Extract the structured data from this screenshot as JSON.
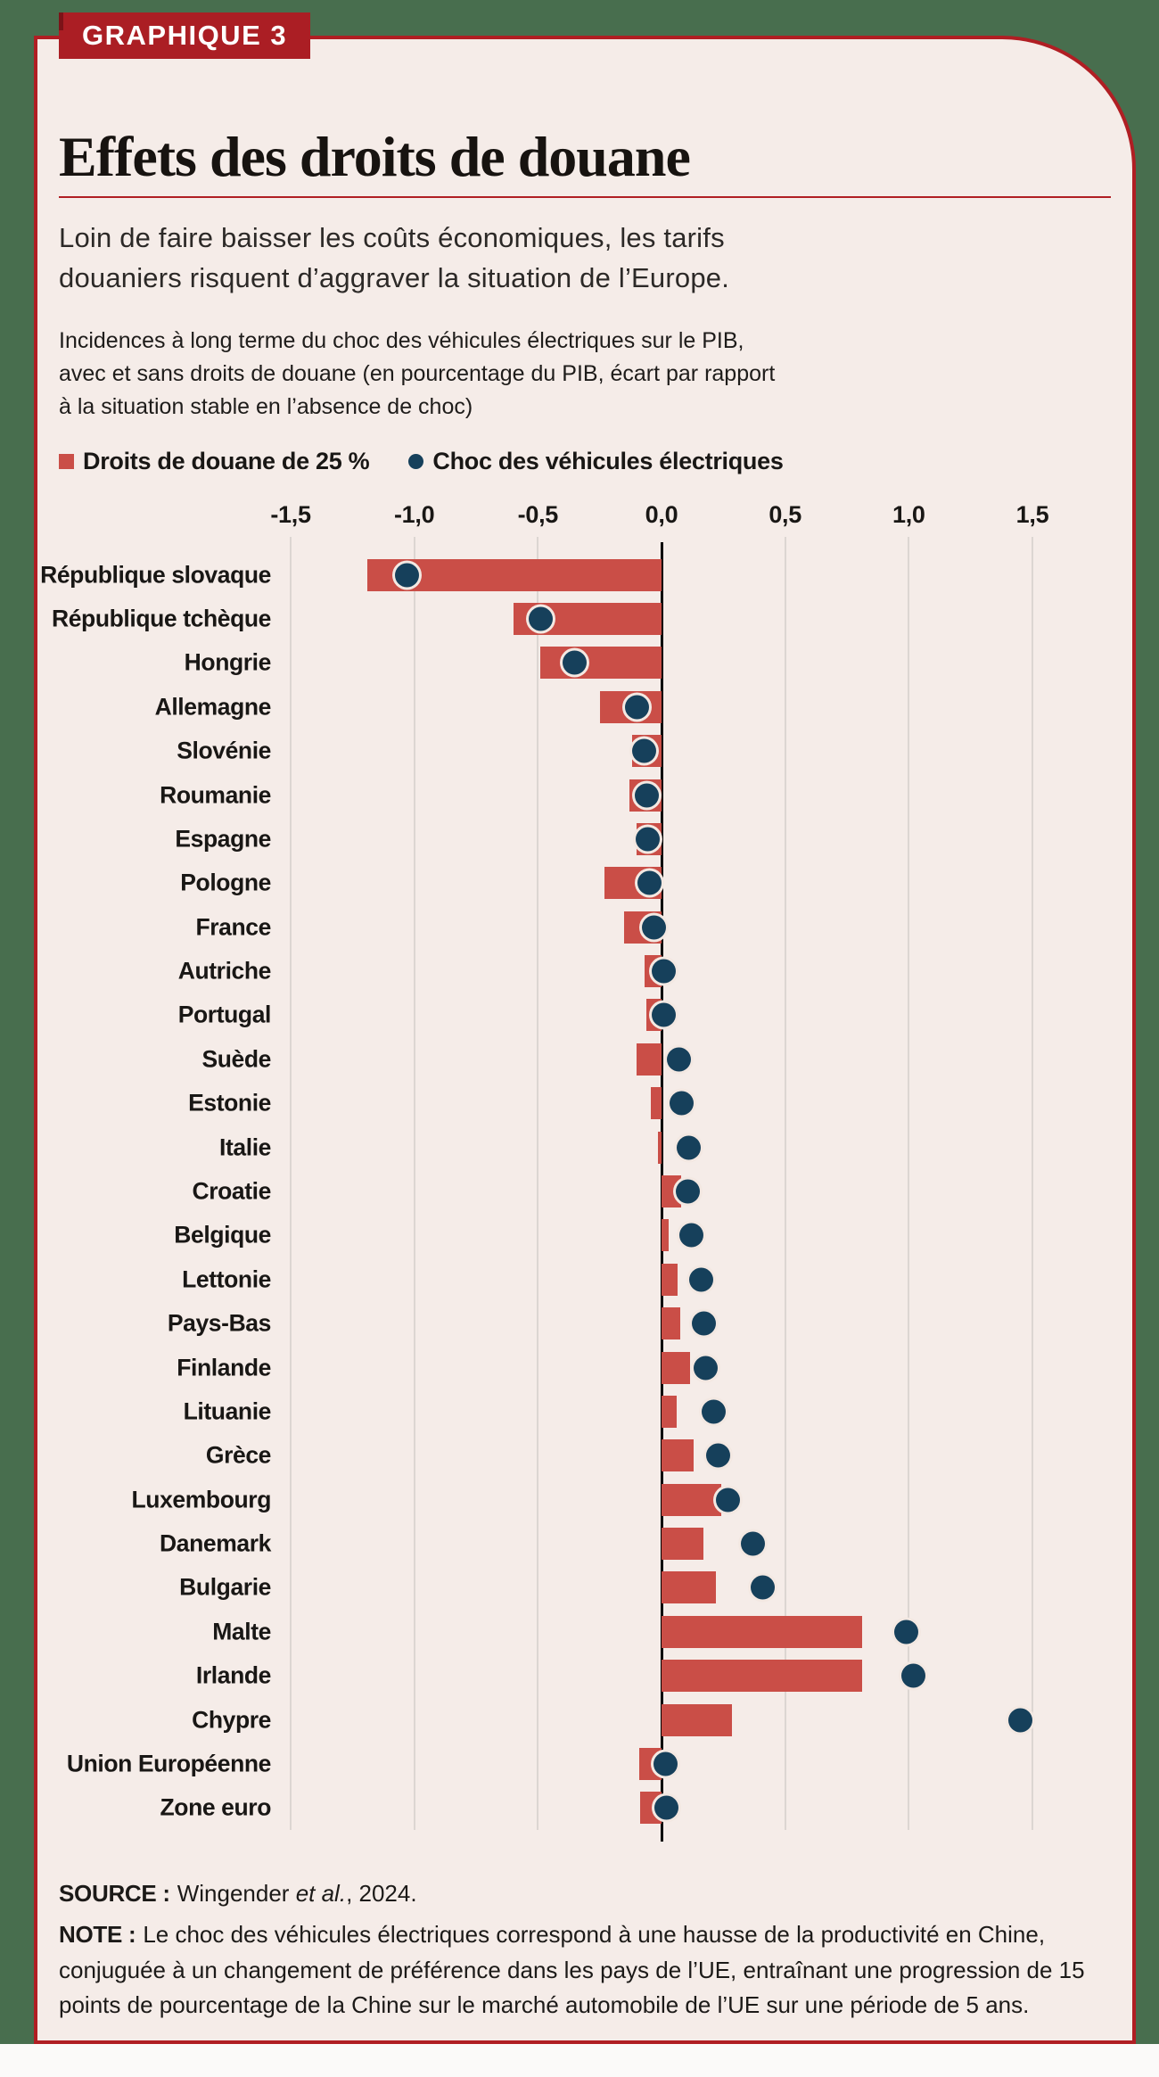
{
  "badge": {
    "label": "GRAPHIQUE 3"
  },
  "header": {
    "title": "Effets des droits de douane",
    "lede_lines": [
      "Loin de faire baisser les coûts économiques, les tarifs",
      "douaniers risquent d’aggraver la situation de l’Europe."
    ],
    "description_lines": [
      "Incidences à long terme du choc des véhicules électriques sur le PIB,",
      "avec et sans droits de douane (en pourcentage du PIB, écart par rapport",
      "à la situation stable en l’absence de choc)"
    ]
  },
  "legend": [
    {
      "label": "Droits de douane de 25 %",
      "color": "#ca4e47",
      "shape": "square"
    },
    {
      "label": "Choc des véhicules électriques",
      "color": "#16405b",
      "shape": "circle"
    }
  ],
  "chart_data": {
    "type": "bar",
    "orientation": "horizontal",
    "title": "Incidences à long terme du choc des véhicules électriques sur le PIB, avec et sans droits de douane (en pourcentage du PIB, écart par rapport à la situation stable en l’absence de choc)",
    "xlim": [
      -1.5,
      1.5
    ],
    "grid": true,
    "legend_position": "top",
    "x_ticks": [
      {
        "value": -1.5,
        "label": "-1,5"
      },
      {
        "value": -1.0,
        "label": "-1,0"
      },
      {
        "value": -0.5,
        "label": "-0,5"
      },
      {
        "value": 0.0,
        "label": "0,0"
      },
      {
        "value": 0.5,
        "label": "0,5"
      },
      {
        "value": 1.0,
        "label": "1,0"
      },
      {
        "value": 1.5,
        "label": "1,5"
      }
    ],
    "categories": [
      "République slovaque",
      "République tchèque",
      "Hongrie",
      "Allemagne",
      "Slovénie",
      "Roumanie",
      "Espagne",
      "Pologne",
      "France",
      "Autriche",
      "Portugal",
      "Suède",
      "Estonie",
      "Italie",
      "Croatie",
      "Belgique",
      "Lettonie",
      "Pays-Bas",
      "Finlande",
      "Lituanie",
      "Grèce",
      "Luxembourg",
      "Danemark",
      "Bulgarie",
      "Malte",
      "Irlande",
      "Chypre",
      "Union Européenne",
      "Zone euro"
    ],
    "series": [
      {
        "name": "Droits de douane de 25 %",
        "mark": "bar",
        "color": "#ca4e47",
        "values": [
          -1.19,
          -0.6,
          -0.49,
          -0.25,
          -0.12,
          -0.13,
          -0.1,
          -0.23,
          -0.15,
          -0.07,
          -0.06,
          -0.1,
          -0.045,
          -0.015,
          0.08,
          0.03,
          0.065,
          0.075,
          0.115,
          0.06,
          0.13,
          0.24,
          0.17,
          0.22,
          0.81,
          0.81,
          0.285,
          -0.09,
          -0.085
        ]
      },
      {
        "name": "Choc des véhicules électriques",
        "mark": "point",
        "color": "#16405b",
        "values": [
          -1.03,
          -0.49,
          -0.35,
          -0.1,
          -0.07,
          -0.06,
          -0.055,
          -0.05,
          -0.03,
          0.01,
          0.01,
          0.07,
          0.08,
          0.11,
          0.105,
          0.12,
          0.16,
          0.17,
          0.18,
          0.21,
          0.23,
          0.27,
          0.37,
          0.41,
          0.99,
          1.02,
          1.45,
          0.015,
          0.02
        ]
      }
    ]
  },
  "footer": {
    "source_label": "SOURCE :",
    "source_pre": "Wingender ",
    "source_italic": "et al.",
    "source_post": ", 2024.",
    "note_label": "NOTE :",
    "note_text": "Le choc des véhicules électriques correspond à une hausse de la productivité en Chine, conjuguée à un changement de préférence dans les pays de l’UE, entraînant une progression de 15 points de pourcentage de la Chine sur le marché automobile de l’UE sur une période de 5 ans."
  },
  "colors": {
    "page_background": "#486e4e",
    "card_background": "#f5ece8",
    "accent_red": "#b01e23",
    "bar_red": "#ca4e47",
    "dot_navy": "#16405b",
    "gridline": "#dcd6d2",
    "zero_line": "#000000"
  }
}
